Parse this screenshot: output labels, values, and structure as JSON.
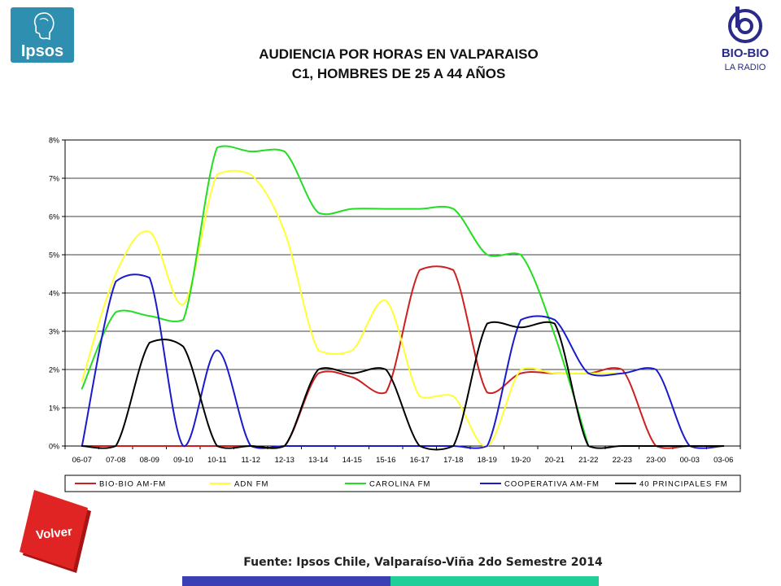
{
  "logos": {
    "left": {
      "text": "Ipsos",
      "icon": "ipsos-head-icon"
    },
    "right": {
      "text_main": "BIO-BIO",
      "text_sub": "LA RADIO",
      "icon": "biobio-logo-icon"
    }
  },
  "title": {
    "line1": "AUDIENCIA POR HORAS EN VALPARAISO",
    "line2": "C1, HOMBRES DE 25 A 44 AÑOS"
  },
  "volver_button": {
    "label": "Volver",
    "color": "#e02424"
  },
  "source_text": "Fuente: Ipsos Chile, Valparaíso-Viña 2do Semestre 2014",
  "bottom_bar_colors": [
    "#3a3fb2",
    "#1fcf97"
  ],
  "chart_data": {
    "type": "line",
    "smooth": true,
    "categories": [
      "06-07",
      "07-08",
      "08-09",
      "09-10",
      "10-11",
      "11-12",
      "12-13",
      "13-14",
      "14-15",
      "15-16",
      "16-17",
      "17-18",
      "18-19",
      "19-20",
      "20-21",
      "21-22",
      "22-23",
      "23-00",
      "00-03",
      "03-06"
    ],
    "y_ticks": [
      "0%",
      "1%",
      "2%",
      "3%",
      "4%",
      "5%",
      "6%",
      "7%",
      "8%"
    ],
    "ylim": [
      0,
      8
    ],
    "grid": true,
    "legend_position": "bottom",
    "series": [
      {
        "name": "BIO-BIO AM-FM",
        "color": "#cc2020",
        "values": [
          0,
          0,
          0,
          0,
          0,
          0,
          0,
          1.9,
          1.8,
          1.4,
          4.6,
          4.6,
          1.4,
          1.9,
          1.9,
          1.9,
          2.0,
          0,
          0,
          0
        ]
      },
      {
        "name": "ADN FM",
        "color": "#ffff33",
        "values": [
          1.7,
          4.5,
          5.6,
          3.7,
          7.1,
          7.1,
          5.6,
          2.5,
          2.5,
          3.8,
          1.3,
          1.3,
          0,
          2.0,
          1.9,
          1.9,
          1.9,
          null,
          null,
          null
        ]
      },
      {
        "name": "CAROLINA FM",
        "color": "#22dd22",
        "values": [
          1.5,
          3.5,
          3.4,
          3.3,
          7.8,
          7.7,
          7.7,
          6.1,
          6.2,
          6.2,
          6.2,
          6.2,
          5.0,
          5.0,
          2.9,
          0,
          null,
          null,
          null,
          null
        ]
      },
      {
        "name": "COOPERATIVA AM-FM",
        "color": "#1a1acc",
        "values": [
          0,
          4.3,
          4.4,
          0,
          2.5,
          0,
          0,
          0,
          0,
          0,
          0,
          0,
          0,
          3.3,
          3.3,
          1.9,
          1.9,
          2.0,
          0,
          0
        ]
      },
      {
        "name": "40 PRINCIPALES FM",
        "color": "#000000",
        "values": [
          0,
          0,
          2.7,
          2.6,
          0,
          0,
          0,
          2.0,
          1.9,
          2.0,
          0,
          0,
          3.2,
          3.1,
          3.2,
          0,
          0,
          0,
          0,
          0
        ]
      }
    ]
  }
}
